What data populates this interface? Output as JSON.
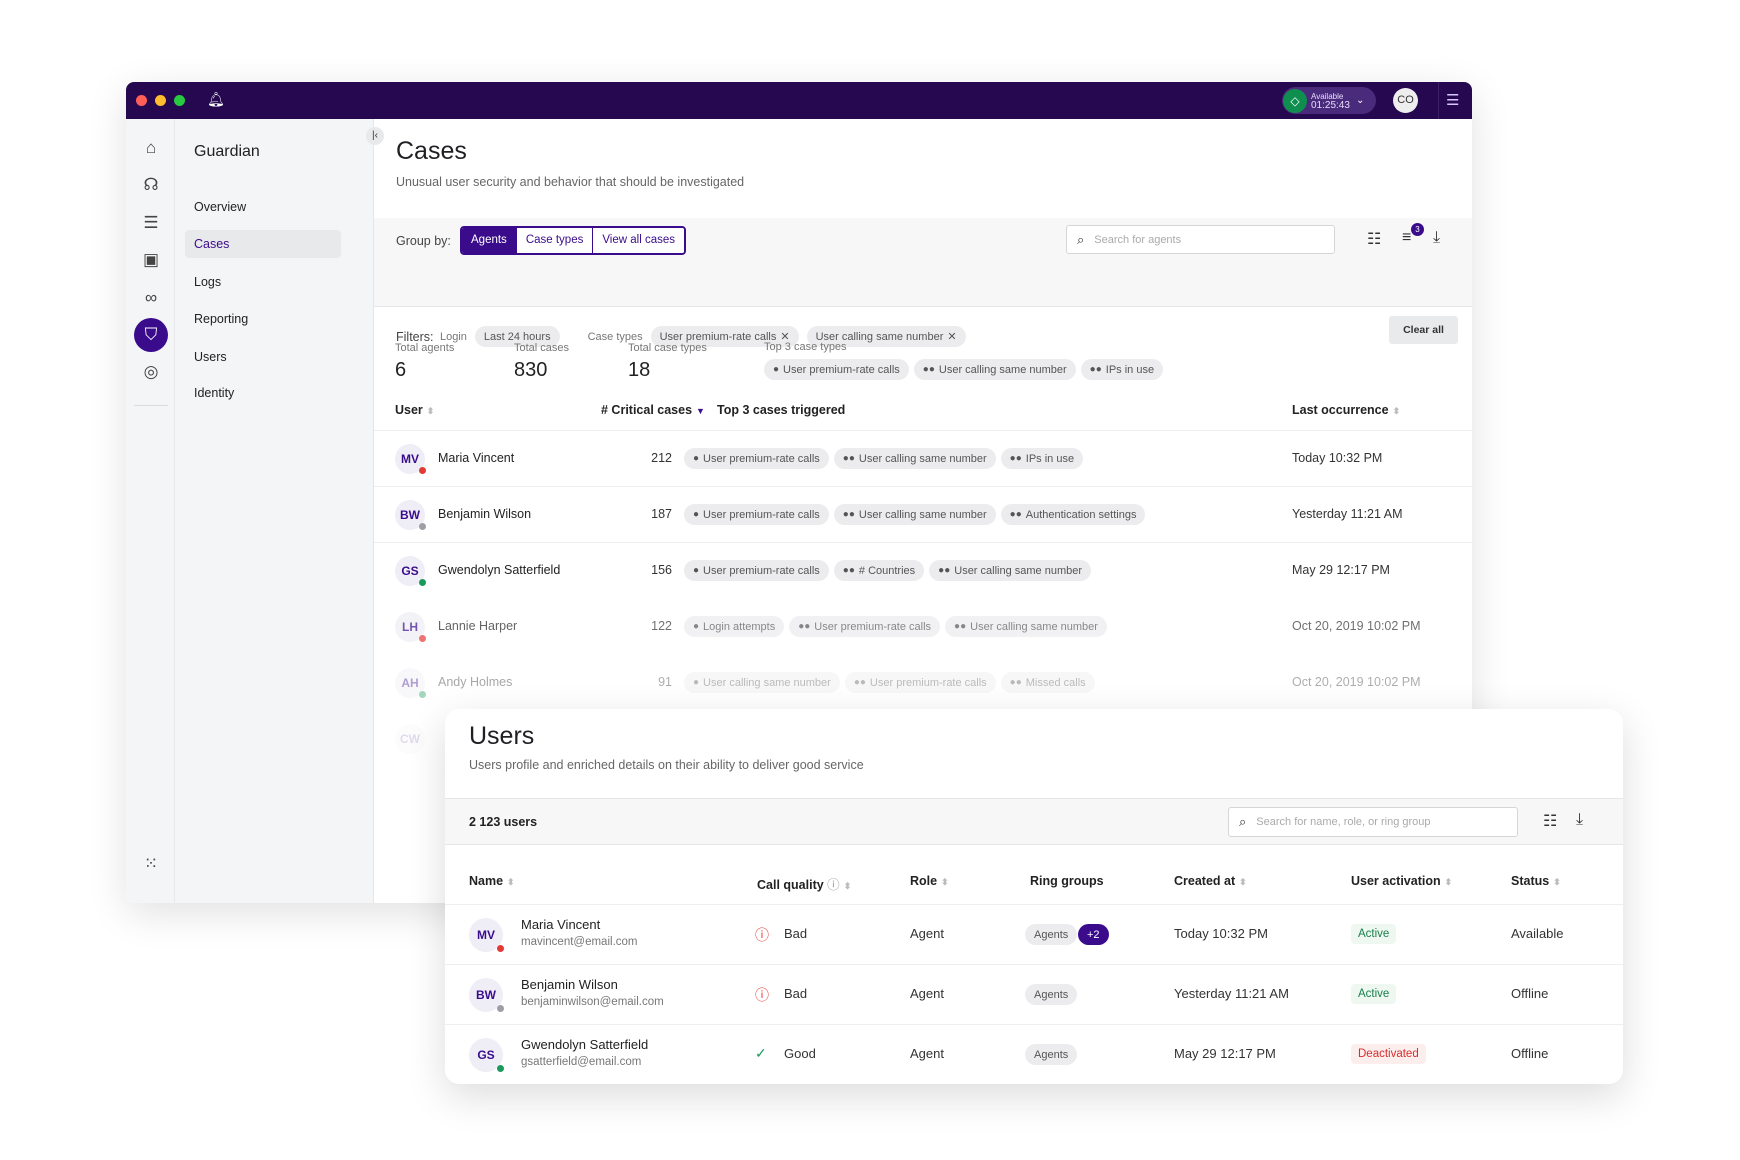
{
  "titlebar": {
    "presence_label": "Available",
    "presence_timer": "01:25:43",
    "avatar": "CO",
    "colors": {
      "bar": "#25084f",
      "accent": "#3a0c8c",
      "available": "#0f8f4f"
    }
  },
  "rail": {
    "icons": [
      "home-icon",
      "support-agent-icon",
      "list-icon",
      "contacts-icon",
      "voicemail-icon",
      "shield-icon",
      "fingerprint-icon"
    ],
    "active": "shield-icon"
  },
  "sidebar": {
    "title": "Guardian",
    "items": [
      {
        "label": "Overview"
      },
      {
        "label": "Cases",
        "active": true
      },
      {
        "label": "Logs"
      },
      {
        "label": "Reporting"
      },
      {
        "label": "Users"
      },
      {
        "label": "Identity"
      }
    ]
  },
  "cases": {
    "title": "Cases",
    "subtitle": "Unusual user security and behavior that should be investigated",
    "group_by_label": "Group by:",
    "group_options": [
      "Agents",
      "Case types",
      "View all cases"
    ],
    "group_selected": "Agents",
    "search_placeholder": "Search for agents",
    "filter_count": "3",
    "filters_label": "Filters:",
    "filter_login_label": "Login",
    "filter_login_value": "Last 24 hours",
    "filter_case_label": "Case types",
    "filter_case_values": [
      "User premium-rate calls",
      "User calling same number"
    ],
    "clear_all": "Clear all",
    "stats": [
      {
        "label": "Total agents",
        "value": "6"
      },
      {
        "label": "Total cases",
        "value": "830"
      },
      {
        "label": "Total case types",
        "value": "18"
      }
    ],
    "top3_label": "Top 3 case types",
    "top3": [
      "User premium-rate calls",
      "User calling same number",
      "IPs in use"
    ],
    "columns": {
      "user": "User",
      "critical": "# Critical cases",
      "top3": "Top 3 cases triggered",
      "last": "Last occurrence"
    },
    "rows": [
      {
        "initials": "MV",
        "name": "Maria Vincent",
        "status": "#e53935",
        "count": "212",
        "cases": [
          "User premium-rate calls",
          "User calling same number",
          "IPs in use"
        ],
        "last": "Today 10:32 PM"
      },
      {
        "initials": "BW",
        "name": "Benjamin Wilson",
        "status": "#9e9ea6",
        "count": "187",
        "cases": [
          "User premium-rate calls",
          "User calling same number",
          "Authentication settings"
        ],
        "last": "Yesterday 11:21 AM"
      },
      {
        "initials": "GS",
        "name": "Gwendolyn Satterfield",
        "status": "#1a9b5b",
        "count": "156",
        "cases": [
          "User premium-rate calls",
          "# Countries",
          "User calling same number"
        ],
        "last": "May 29 12:17 PM"
      },
      {
        "initials": "LH",
        "name": "Lannie Harper",
        "status": "#e53935",
        "count": "122",
        "cases": [
          "Login attempts",
          "User premium-rate calls",
          "User calling same number"
        ],
        "last": "Oct 20, 2019 10:02 PM"
      },
      {
        "initials": "AH",
        "name": "Andy Holmes",
        "status": "#1a9b5b",
        "count": "91",
        "cases": [
          "User calling same number",
          "User premium-rate calls",
          "Missed calls"
        ],
        "last": "Oct 20, 2019 10:02 PM"
      },
      {
        "initials": "CW"
      }
    ]
  },
  "users": {
    "title": "Users",
    "subtitle": "Users profile and enriched details on their ability to deliver good service",
    "count": "2 123 users",
    "search_placeholder": "Search for name, role, or ring group",
    "columns": {
      "name": "Name",
      "quality": "Call quality",
      "role": "Role",
      "ring": "Ring groups",
      "created": "Created at",
      "activation": "User activation",
      "status": "Status"
    },
    "rows": [
      {
        "initials": "MV",
        "name": "Maria Vincent",
        "email": "mavincent@email.com",
        "dot": "#e53935",
        "quality": "Bad",
        "role": "Agent",
        "ring": "Agents",
        "ring_extra": "+2",
        "created": "Today 10:32 PM",
        "activation": "Active",
        "status": "Available"
      },
      {
        "initials": "BW",
        "name": "Benjamin Wilson",
        "email": "benjaminwilson@email.com",
        "dot": "#9e9ea6",
        "quality": "Bad",
        "role": "Agent",
        "ring": "Agents",
        "created": "Yesterday 11:21 AM",
        "activation": "Active",
        "status": "Offline"
      },
      {
        "initials": "GS",
        "name": "Gwendolyn Satterfield",
        "email": "gsatterfield@email.com",
        "dot": "#1a9b5b",
        "quality": "Good",
        "role": "Agent",
        "ring": "Agents",
        "created": "May 29 12:17 PM",
        "activation": "Deactivated",
        "status": "Offline"
      }
    ]
  }
}
